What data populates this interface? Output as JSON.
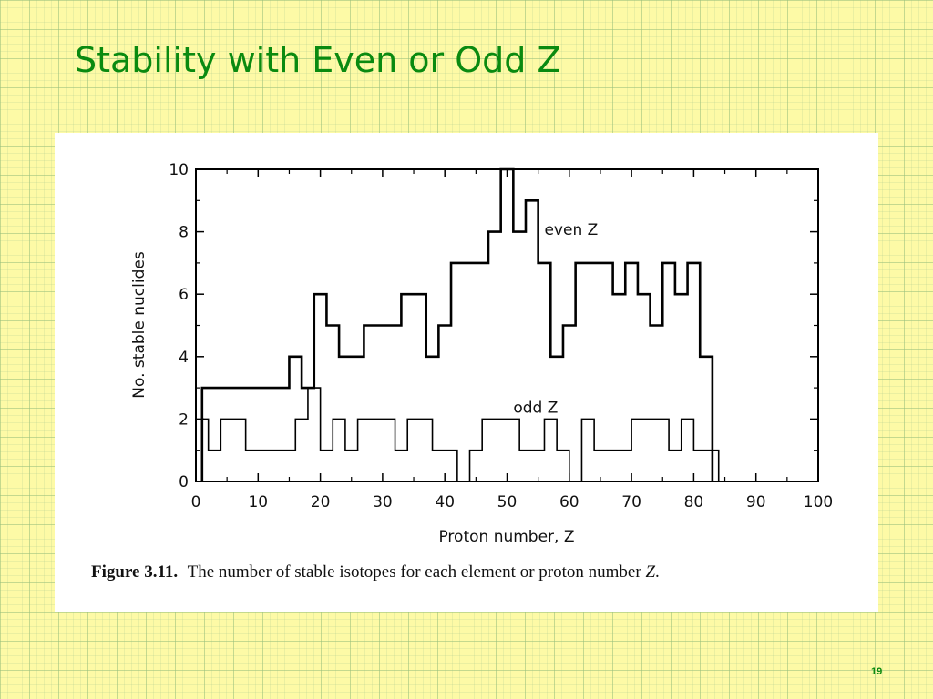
{
  "slide": {
    "title": "Stability with Even or Odd Z",
    "page_number": "19"
  },
  "figure": {
    "caption_label": "Figure 3.11.",
    "caption_text": "The number of stable isotopes for each element or proton number",
    "caption_var": "Z",
    "caption_end": "."
  },
  "chart_data": {
    "type": "line",
    "xlabel": "Proton number, Z",
    "ylabel": "No. stable nuclides",
    "xlim": [
      0,
      100
    ],
    "ylim": [
      0,
      10
    ],
    "x_ticks": [
      0,
      10,
      20,
      30,
      40,
      50,
      60,
      70,
      80,
      90,
      100
    ],
    "y_ticks": [
      0,
      2,
      4,
      6,
      8,
      10
    ],
    "step_style": "histogram step",
    "series": [
      {
        "name": "even Z",
        "x": [
          1,
          2,
          4,
          6,
          8,
          10,
          12,
          14,
          16,
          18,
          20,
          22,
          24,
          26,
          28,
          30,
          32,
          34,
          36,
          38,
          40,
          42,
          44,
          46,
          48,
          50,
          52,
          54,
          56,
          58,
          60,
          62,
          64,
          66,
          68,
          70,
          72,
          74,
          76,
          78,
          80,
          82
        ],
        "values": [
          3,
          3,
          3,
          3,
          3,
          3,
          3,
          3,
          4,
          3,
          6,
          5,
          4,
          4,
          5,
          5,
          5,
          6,
          6,
          4,
          5,
          7,
          7,
          7,
          8,
          10,
          8,
          9,
          7,
          4,
          5,
          7,
          7,
          7,
          6,
          7,
          6,
          5,
          7,
          6,
          7,
          4
        ]
      },
      {
        "name": "odd Z",
        "x": [
          1,
          3,
          5,
          7,
          9,
          11,
          13,
          15,
          17,
          19,
          21,
          23,
          25,
          27,
          29,
          31,
          33,
          35,
          37,
          39,
          41,
          43,
          45,
          47,
          49,
          51,
          53,
          55,
          57,
          59,
          61,
          63,
          65,
          67,
          69,
          71,
          73,
          75,
          77,
          79,
          81,
          83
        ],
        "values": [
          2,
          1,
          2,
          2,
          1,
          1,
          1,
          1,
          2,
          3,
          1,
          2,
          1,
          2,
          2,
          2,
          1,
          2,
          2,
          1,
          1,
          0,
          1,
          2,
          2,
          2,
          1,
          1,
          2,
          1,
          0,
          2,
          1,
          1,
          1,
          2,
          2,
          2,
          1,
          2,
          1,
          1
        ]
      }
    ]
  }
}
